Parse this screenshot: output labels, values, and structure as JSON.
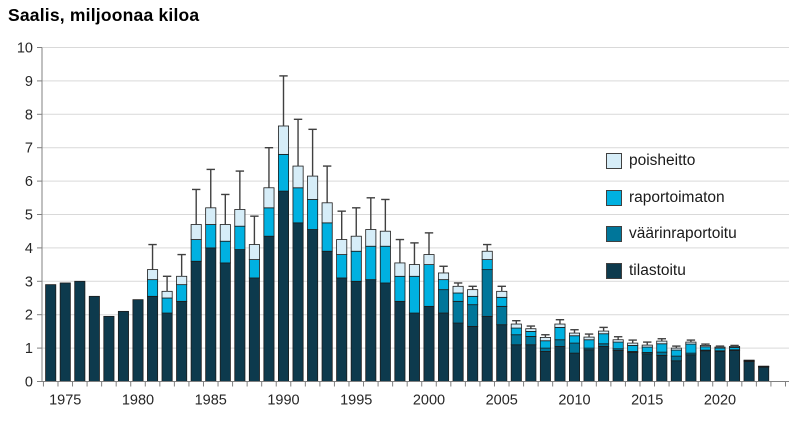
{
  "title": "Saalis, miljoonaa kiloa",
  "chart_data": {
    "type": "bar",
    "stacked": true,
    "title": "Saalis, miljoonaa kiloa",
    "ylabel": "Saalis, miljoonaa kiloa",
    "xlabel": "",
    "ylim": [
      0,
      10
    ],
    "grid": true,
    "legend_position": "right-inside",
    "x": [
      1974,
      1975,
      1976,
      1977,
      1978,
      1979,
      1980,
      1981,
      1982,
      1983,
      1984,
      1985,
      1986,
      1987,
      1988,
      1989,
      1990,
      1991,
      1992,
      1993,
      1994,
      1995,
      1996,
      1997,
      1998,
      1999,
      2000,
      2001,
      2002,
      2003,
      2004,
      2005,
      2006,
      2007,
      2008,
      2009,
      2010,
      2011,
      2012,
      2013,
      2014,
      2015,
      2016,
      2017,
      2018,
      2019,
      2020,
      2021,
      2022,
      2023
    ],
    "series": [
      {
        "name": "tilastoitu",
        "color": "#0d3a4d",
        "values": [
          2.9,
          2.95,
          3.0,
          2.55,
          1.95,
          2.1,
          2.45,
          2.55,
          2.05,
          2.4,
          3.6,
          4.0,
          3.55,
          3.95,
          3.1,
          4.35,
          5.7,
          4.75,
          4.55,
          3.9,
          3.1,
          3.0,
          3.05,
          2.95,
          2.4,
          2.05,
          2.25,
          2.05,
          1.75,
          1.65,
          1.95,
          1.7,
          1.1,
          1.1,
          0.9,
          1.05,
          0.85,
          0.95,
          1.05,
          0.93,
          0.87,
          0.83,
          0.78,
          0.62,
          0.8,
          0.92,
          0.9,
          0.93,
          0.6,
          0.43
        ]
      },
      {
        "name": "väärinraportoitu",
        "color": "#00769a",
        "values": [
          0,
          0,
          0,
          0,
          0,
          0,
          0,
          0,
          0,
          0,
          0,
          0,
          0,
          0,
          0,
          0,
          0,
          0,
          0,
          0,
          0,
          0,
          0,
          0,
          0,
          0,
          0,
          0.7,
          0.65,
          0.65,
          1.4,
          0.55,
          0.3,
          0.25,
          0.1,
          0.2,
          0.3,
          0.05,
          0.08,
          0.05,
          0.03,
          0.04,
          0.1,
          0.14,
          0.05,
          0.02,
          0.02,
          0.02,
          0.01,
          0.01
        ]
      },
      {
        "name": "raportoimaton",
        "color": "#00b1e1",
        "values": [
          0,
          0,
          0,
          0,
          0,
          0,
          0,
          0.5,
          0.45,
          0.5,
          0.65,
          0.7,
          0.65,
          0.7,
          0.55,
          0.85,
          1.1,
          1.05,
          0.9,
          0.85,
          0.7,
          0.9,
          1.0,
          1.1,
          0.75,
          1.1,
          1.25,
          0.3,
          0.25,
          0.25,
          0.3,
          0.27,
          0.2,
          0.15,
          0.22,
          0.37,
          0.22,
          0.25,
          0.3,
          0.2,
          0.18,
          0.16,
          0.25,
          0.18,
          0.27,
          0.1,
          0.08,
          0.07,
          0.02,
          0.01
        ]
      },
      {
        "name": "poisheitto",
        "color": "#d6edf8",
        "values": [
          0,
          0,
          0,
          0,
          0,
          0,
          0,
          0.3,
          0.2,
          0.25,
          0.45,
          0.5,
          0.5,
          0.5,
          0.45,
          0.6,
          0.85,
          0.65,
          0.7,
          0.6,
          0.45,
          0.45,
          0.5,
          0.45,
          0.4,
          0.35,
          0.3,
          0.2,
          0.2,
          0.2,
          0.25,
          0.18,
          0.12,
          0.08,
          0.1,
          0.1,
          0.08,
          0.08,
          0.08,
          0.07,
          0.07,
          0.06,
          0.08,
          0.06,
          0.06,
          0.04,
          0.03,
          0.03,
          0.01,
          0.01
        ]
      }
    ],
    "error_upper": [
      null,
      null,
      null,
      null,
      null,
      null,
      null,
      4.1,
      3.15,
      3.8,
      5.75,
      6.35,
      5.6,
      6.3,
      4.95,
      7.0,
      9.15,
      7.85,
      7.55,
      6.45,
      5.1,
      5.2,
      5.5,
      5.45,
      4.25,
      4.15,
      4.45,
      3.45,
      2.95,
      2.85,
      4.1,
      2.85,
      1.82,
      1.66,
      1.4,
      1.85,
      1.55,
      1.42,
      1.62,
      1.34,
      1.24,
      1.18,
      1.28,
      1.06,
      1.24,
      1.12,
      1.06,
      1.08,
      null,
      null
    ],
    "yticks": [
      0,
      1,
      2,
      3,
      4,
      5,
      6,
      7,
      8,
      9,
      10
    ],
    "xticks": [
      1975,
      1980,
      1985,
      1990,
      1995,
      2000,
      2005,
      2010,
      2015,
      2020
    ],
    "legend": [
      {
        "label": "poisheitto",
        "color": "#d6edf8"
      },
      {
        "label": "raportoimaton",
        "color": "#00b1e1"
      },
      {
        "label": "väärinraportoitu",
        "color": "#00769a"
      },
      {
        "label": "tilastoitu",
        "color": "#0d3a4d"
      }
    ],
    "colors": {
      "grid": "#d9d9d9",
      "axis": "#808080",
      "outline": "#1c1c1c",
      "error": "#404040",
      "text": "#262626"
    }
  }
}
